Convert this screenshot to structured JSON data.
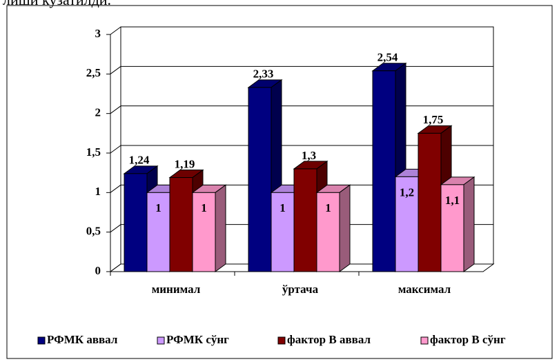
{
  "caption": "лиши кузатилди.",
  "chart_data": {
    "type": "bar3d",
    "categories": [
      "минимал",
      "ўртача",
      "максимал"
    ],
    "series": [
      {
        "name": "РФМК аввал",
        "color": "#000080",
        "values": [
          1.24,
          2.33,
          2.54
        ],
        "value_labels": [
          "1,24",
          "2,33",
          "2,54"
        ]
      },
      {
        "name": "РФМК сўнг",
        "color": "#cc99ff",
        "values": [
          1,
          1,
          1.2
        ],
        "value_labels": [
          "1",
          "1",
          "1,2"
        ]
      },
      {
        "name": "фактор В аввал",
        "color": "#800000",
        "values": [
          1.19,
          1.3,
          1.75
        ],
        "value_labels": [
          "1,19",
          "1,3",
          "1,75"
        ]
      },
      {
        "name": "фактор В сўнг",
        "color": "#ff99cc",
        "values": [
          1,
          1,
          1.1
        ],
        "value_labels": [
          "1",
          "1",
          "1,1"
        ]
      }
    ],
    "ylim": [
      0,
      3
    ],
    "yticks": [
      0,
      {
        "value": 0.5,
        "label": "0,5"
      },
      1,
      {
        "value": 1.5,
        "label": "1,5"
      },
      2,
      {
        "value": 2.5,
        "label": "2,5"
      },
      3
    ],
    "grid": true,
    "legend": "bottom"
  }
}
